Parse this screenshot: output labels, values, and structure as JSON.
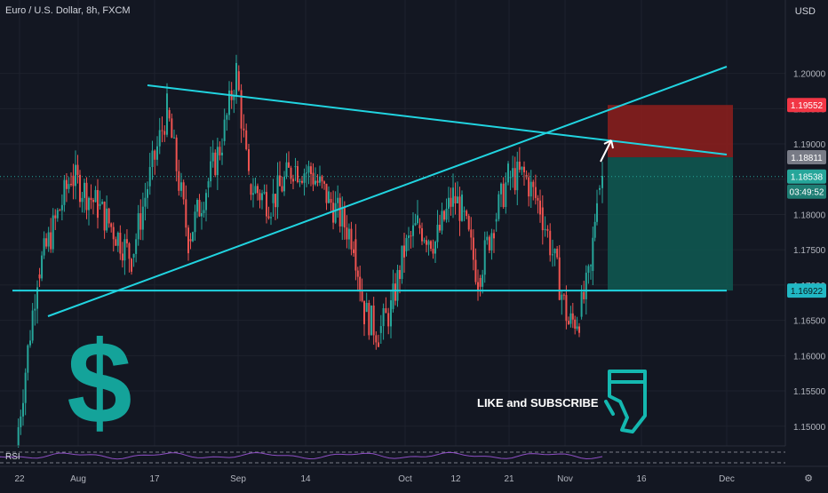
{
  "header": {
    "title": "Euro / U.S. Dollar, 8h, FXCM",
    "currency": "USD"
  },
  "annotation": {
    "text": "LIKE and SUBSCRIBE",
    "dollar_icon": "dollar-sign-icon",
    "hand_icon": "hand-pointing-down-icon"
  },
  "colors": {
    "background": "#131722",
    "up": "#26a69a",
    "down": "#ef5350",
    "trendline": "#21d4e0",
    "stop_zone": "#8e1f1c",
    "target_zone": "#0f5a52",
    "rsi": "#8e4fc4"
  },
  "chart_data": {
    "type": "candlestick",
    "symbol": "EURUSD",
    "timeframe": "8h",
    "y_axis": {
      "ticks": [
        "1.20000",
        "1.19500",
        "1.19000",
        "1.18500",
        "1.18000",
        "1.17500",
        "1.17000",
        "1.16500",
        "1.16000",
        "1.15500",
        "1.15000"
      ],
      "ylim": [
        1.1472,
        1.2104
      ]
    },
    "x_axis": {
      "ticks": [
        "22",
        "Aug",
        "17",
        "Sep",
        "14",
        "Oct",
        "12",
        "21",
        "Nov",
        "16",
        "Dec"
      ]
    },
    "price_labels": [
      {
        "value": "1.19552",
        "kind": "stop"
      },
      {
        "value": "1.18811",
        "kind": "entry"
      },
      {
        "value": "1.18538",
        "kind": "last"
      },
      {
        "value": "03:49:52",
        "kind": "countdown"
      },
      {
        "value": "1.16922",
        "kind": "target"
      }
    ],
    "series": [
      {
        "period": "Jul 22",
        "close": 1.1472
      },
      {
        "period": "Jul 27",
        "close": 1.1715
      },
      {
        "period": "Jul 31",
        "close": 1.1855
      },
      {
        "period": "Aug 06",
        "close": 1.1812
      },
      {
        "period": "Aug 11",
        "close": 1.1739
      },
      {
        "period": "Aug 14",
        "close": 1.184
      },
      {
        "period": "Aug 18",
        "close": 1.1948
      },
      {
        "period": "Aug 21",
        "close": 1.1765
      },
      {
        "period": "Aug 25",
        "close": 1.1838
      },
      {
        "period": "Aug 28",
        "close": 1.1904
      },
      {
        "period": "Sep 01",
        "close": 1.2003
      },
      {
        "period": "Sep 03",
        "close": 1.1843
      },
      {
        "period": "Sep 07",
        "close": 1.1816
      },
      {
        "period": "Sep 10",
        "close": 1.1868
      },
      {
        "period": "Sep 14",
        "close": 1.1859
      },
      {
        "period": "Sep 17",
        "close": 1.1822
      },
      {
        "period": "Sep 21",
        "close": 1.1765
      },
      {
        "period": "Sep 23",
        "close": 1.1662
      },
      {
        "period": "Sep 25",
        "close": 1.1632
      },
      {
        "period": "Sep 28",
        "close": 1.1666
      },
      {
        "period": "Oct 01",
        "close": 1.1748
      },
      {
        "period": "Oct 05",
        "close": 1.1785
      },
      {
        "period": "Oct 08",
        "close": 1.1761
      },
      {
        "period": "Oct 09",
        "close": 1.1826
      },
      {
        "period": "Oct 12",
        "close": 1.1805
      },
      {
        "period": "Oct 15",
        "close": 1.171
      },
      {
        "period": "Oct 19",
        "close": 1.179
      },
      {
        "period": "Oct 21",
        "close": 1.1852
      },
      {
        "period": "Oct 23",
        "close": 1.1856
      },
      {
        "period": "Oct 26",
        "close": 1.181
      },
      {
        "period": "Oct 28",
        "close": 1.1745
      },
      {
        "period": "Oct 30",
        "close": 1.1645
      },
      {
        "period": "Nov 02",
        "close": 1.1655
      },
      {
        "period": "Nov 03",
        "close": 1.172
      },
      {
        "period": "Nov 05",
        "close": 1.1835
      },
      {
        "period": "Nov 06",
        "close": 1.1854
      }
    ],
    "rsi_label": "RSI"
  }
}
